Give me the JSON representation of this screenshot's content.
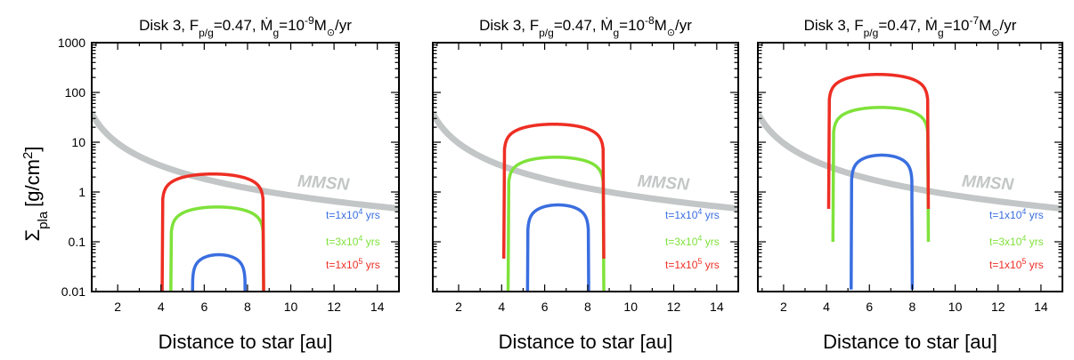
{
  "y_axis_label": "Σ",
  "y_axis_label_sub": "pla",
  "y_axis_label_unit": "[g/cm",
  "y_axis_label_sup": "2",
  "y_axis_label_close": "]",
  "colors": {
    "mmsn": "#c3c6c6",
    "series_1e4": "#3a6ee0",
    "series_3e4": "#7fe23a",
    "series_1e5": "#ee2e24"
  },
  "chart_data": [
    {
      "type": "line",
      "title": {
        "prefix": "Disk 3, F",
        "sub1": "p/g",
        "mid1": "=0.47, ",
        "mdot": "Ṁ",
        "sub2": "g",
        "mid2": "=10",
        "sup": "-9",
        "mid3": "M",
        "sun": "⊙",
        "suffix": "/yr"
      },
      "xlabel": "Distance to star [au]",
      "xlim": [
        0.8,
        15
      ],
      "ylim": [
        0.01,
        1000
      ],
      "ylog": true,
      "xticks": [
        2,
        4,
        6,
        8,
        10,
        12,
        14
      ],
      "yticks": [
        {
          "v": 0.01,
          "label": "0.01"
        },
        {
          "v": 0.1,
          "label": "0.1"
        },
        {
          "v": 1,
          "label": "1"
        },
        {
          "v": 10,
          "label": "10"
        },
        {
          "v": 100,
          "label": "100"
        },
        {
          "v": 1000,
          "label": "1000"
        }
      ],
      "mmsn": {
        "label": "MMSN",
        "sigma_at_1au": 27,
        "exponent": -1.5
      },
      "series": [
        {
          "key": "t1e4",
          "legend": {
            "pre": "t=1x10",
            "sup": "4",
            "post": " yrs"
          },
          "color_key": "series_1e4",
          "x_in": 5.45,
          "x_out": 7.9,
          "peak": 0.055
        },
        {
          "key": "t3e4",
          "legend": {
            "pre": "t=3x10",
            "sup": "4",
            "post": " yrs"
          },
          "color_key": "series_3e4",
          "x_in": 4.45,
          "x_out": 8.75,
          "peak": 0.5
        },
        {
          "key": "t1e5",
          "legend": {
            "pre": "t=1x10",
            "sup": "5",
            "post": " yrs"
          },
          "color_key": "series_1e5",
          "x_in": 4.05,
          "x_out": 8.75,
          "peak": 2.3
        }
      ]
    },
    {
      "type": "line",
      "title": {
        "prefix": "Disk 3, F",
        "sub1": "p/g",
        "mid1": "=0.47, ",
        "mdot": "Ṁ",
        "sub2": "g",
        "mid2": "=10",
        "sup": "-8",
        "mid3": "M",
        "sun": "⊙",
        "suffix": "/yr"
      },
      "xlabel": "Distance to star [au]",
      "xlim": [
        0.8,
        15
      ],
      "ylim": [
        0.01,
        1000
      ],
      "ylog": true,
      "xticks": [
        2,
        4,
        6,
        8,
        10,
        12,
        14
      ],
      "yticks": [],
      "mmsn": {
        "label": "MMSN",
        "sigma_at_1au": 27,
        "exponent": -1.5
      },
      "series": [
        {
          "key": "t1e4",
          "legend": {
            "pre": "t=1x10",
            "sup": "4",
            "post": " yrs"
          },
          "color_key": "series_1e4",
          "x_in": 5.2,
          "x_out": 8.05,
          "peak": 0.55
        },
        {
          "key": "t3e4",
          "legend": {
            "pre": "t=3x10",
            "sup": "4",
            "post": " yrs"
          },
          "color_key": "series_3e4",
          "x_in": 4.3,
          "x_out": 8.75,
          "peak": 5
        },
        {
          "key": "t1e5",
          "legend": {
            "pre": "t=1x10",
            "sup": "5",
            "post": " yrs"
          },
          "color_key": "series_1e5",
          "x_in": 4.1,
          "x_out": 8.75,
          "peak": 23
        }
      ]
    },
    {
      "type": "line",
      "title": {
        "prefix": "Disk 3, F",
        "sub1": "p/g",
        "mid1": "=0.47, ",
        "mdot": "Ṁ",
        "sub2": "g",
        "mid2": "=10",
        "sup": "-7",
        "mid3": "M",
        "sun": "⊙",
        "suffix": "/yr"
      },
      "xlabel": "Distance to star [au]",
      "xlim": [
        0.8,
        15
      ],
      "ylim": [
        0.01,
        1000
      ],
      "ylog": true,
      "xticks": [
        2,
        4,
        6,
        8,
        10,
        12,
        14
      ],
      "yticks": [],
      "mmsn": {
        "label": "MMSN",
        "sigma_at_1au": 27,
        "exponent": -1.5
      },
      "series": [
        {
          "key": "t1e4",
          "legend": {
            "pre": "t=1x10",
            "sup": "4",
            "post": " yrs"
          },
          "color_key": "series_1e4",
          "x_in": 5.15,
          "x_out": 8.0,
          "peak": 5.5
        },
        {
          "key": "t3e4",
          "legend": {
            "pre": "t=3x10",
            "sup": "4",
            "post": " yrs"
          },
          "color_key": "series_3e4",
          "x_in": 4.3,
          "x_out": 8.75,
          "peak": 50
        },
        {
          "key": "t1e5",
          "legend": {
            "pre": "t=1x10",
            "sup": "5",
            "post": " yrs"
          },
          "color_key": "series_1e5",
          "x_in": 4.1,
          "x_out": 8.75,
          "peak": 230
        }
      ]
    }
  ]
}
